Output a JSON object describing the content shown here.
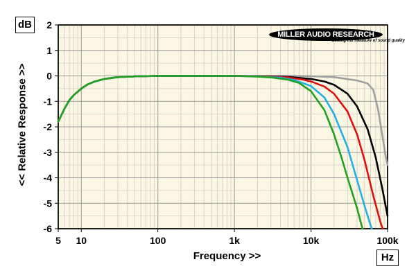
{
  "chart_data": {
    "type": "line",
    "xscale": "log",
    "xlim": [
      5,
      100000
    ],
    "ylim": [
      -6,
      2
    ],
    "grid": true,
    "legend": "none",
    "xlabel": "Frequency >>",
    "ylabel": "<< Relative Response >>",
    "x_unit": "Hz",
    "y_unit": "dB",
    "x_ticks": [
      {
        "value": 5,
        "label": "5"
      },
      {
        "value": 10,
        "label": "10"
      },
      {
        "value": 100,
        "label": "100"
      },
      {
        "value": 1000,
        "label": "1k"
      },
      {
        "value": 10000,
        "label": "10k"
      },
      {
        "value": 100000,
        "label": "100k"
      }
    ],
    "y_ticks": [
      2,
      1,
      0,
      -1,
      -2,
      -3,
      -4,
      -5,
      -6
    ],
    "series": [
      {
        "color": "#a0a0a0",
        "points": [
          [
            5,
            -1.8
          ],
          [
            6,
            -1.3
          ],
          [
            7,
            -0.95
          ],
          [
            8,
            -0.75
          ],
          [
            10,
            -0.5
          ],
          [
            12,
            -0.34
          ],
          [
            15,
            -0.22
          ],
          [
            20,
            -0.12
          ],
          [
            30,
            -0.05
          ],
          [
            50,
            -0.02
          ],
          [
            100,
            0
          ],
          [
            1000,
            0
          ],
          [
            5000,
            0
          ],
          [
            10000,
            -0.01
          ],
          [
            20000,
            -0.05
          ],
          [
            40000,
            -0.18
          ],
          [
            55000,
            -0.3
          ],
          [
            65000,
            -0.55
          ],
          [
            75000,
            -1.3
          ],
          [
            85000,
            -2.3
          ],
          [
            95000,
            -3.2
          ],
          [
            100000,
            -3.5
          ]
        ]
      },
      {
        "color": "#000000",
        "points": [
          [
            5,
            -1.8
          ],
          [
            6,
            -1.3
          ],
          [
            7,
            -0.95
          ],
          [
            8,
            -0.75
          ],
          [
            10,
            -0.5
          ],
          [
            12,
            -0.34
          ],
          [
            15,
            -0.22
          ],
          [
            20,
            -0.12
          ],
          [
            30,
            -0.05
          ],
          [
            50,
            -0.02
          ],
          [
            100,
            0
          ],
          [
            1000,
            0
          ],
          [
            2000,
            -0.01
          ],
          [
            5000,
            -0.04
          ],
          [
            10000,
            -0.12
          ],
          [
            15000,
            -0.22
          ],
          [
            20000,
            -0.35
          ],
          [
            30000,
            -0.7
          ],
          [
            40000,
            -1.2
          ],
          [
            55000,
            -2.1
          ],
          [
            70000,
            -3.2
          ],
          [
            85000,
            -4.4
          ],
          [
            100000,
            -5.5
          ]
        ]
      },
      {
        "color": "#dd1010",
        "points": [
          [
            5,
            -1.8
          ],
          [
            6,
            -1.3
          ],
          [
            7,
            -0.95
          ],
          [
            8,
            -0.75
          ],
          [
            10,
            -0.5
          ],
          [
            12,
            -0.34
          ],
          [
            15,
            -0.22
          ],
          [
            20,
            -0.12
          ],
          [
            30,
            -0.05
          ],
          [
            50,
            -0.02
          ],
          [
            100,
            0
          ],
          [
            1000,
            0
          ],
          [
            2000,
            -0.01
          ],
          [
            5000,
            -0.06
          ],
          [
            8000,
            -0.15
          ],
          [
            10000,
            -0.22
          ],
          [
            15000,
            -0.42
          ],
          [
            20000,
            -0.7
          ],
          [
            30000,
            -1.4
          ],
          [
            40000,
            -2.3
          ],
          [
            50000,
            -3.3
          ],
          [
            65000,
            -4.7
          ],
          [
            80000,
            -5.7
          ],
          [
            86000,
            -6
          ]
        ]
      },
      {
        "color": "#22b0e8",
        "points": [
          [
            5,
            -1.8
          ],
          [
            6,
            -1.3
          ],
          [
            7,
            -0.95
          ],
          [
            8,
            -0.75
          ],
          [
            10,
            -0.5
          ],
          [
            12,
            -0.34
          ],
          [
            15,
            -0.22
          ],
          [
            20,
            -0.12
          ],
          [
            30,
            -0.05
          ],
          [
            50,
            -0.02
          ],
          [
            100,
            0
          ],
          [
            1000,
            0
          ],
          [
            2000,
            -0.02
          ],
          [
            4000,
            -0.07
          ],
          [
            6000,
            -0.16
          ],
          [
            10000,
            -0.4
          ],
          [
            15000,
            -0.85
          ],
          [
            20000,
            -1.5
          ],
          [
            30000,
            -2.8
          ],
          [
            40000,
            -4.1
          ],
          [
            50000,
            -5.1
          ],
          [
            62000,
            -6
          ]
        ]
      },
      {
        "color": "#22a022",
        "points": [
          [
            5,
            -1.8
          ],
          [
            6,
            -1.3
          ],
          [
            7,
            -0.95
          ],
          [
            8,
            -0.75
          ],
          [
            10,
            -0.5
          ],
          [
            12,
            -0.34
          ],
          [
            15,
            -0.22
          ],
          [
            20,
            -0.12
          ],
          [
            30,
            -0.05
          ],
          [
            50,
            -0.02
          ],
          [
            100,
            0
          ],
          [
            1000,
            0
          ],
          [
            2000,
            -0.03
          ],
          [
            3000,
            -0.06
          ],
          [
            5000,
            -0.15
          ],
          [
            7000,
            -0.28
          ],
          [
            10000,
            -0.6
          ],
          [
            15000,
            -1.35
          ],
          [
            20000,
            -2.3
          ],
          [
            25000,
            -3.2
          ],
          [
            30000,
            -4
          ],
          [
            40000,
            -5.2
          ],
          [
            47000,
            -6
          ]
        ]
      }
    ]
  },
  "logo": {
    "text": "MILLER AUDIO RESEARCH",
    "tagline": "Getting the measure of sound quality"
  }
}
